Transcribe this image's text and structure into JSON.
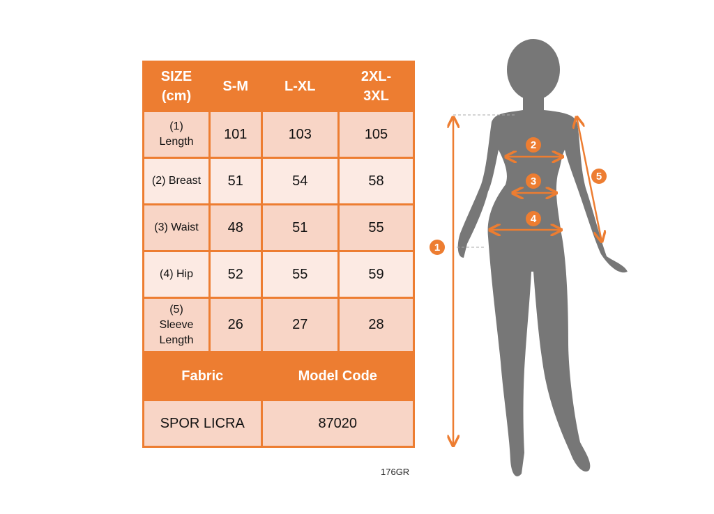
{
  "table": {
    "header": [
      "SIZE\n(cm)",
      "S-M",
      "L-XL",
      "2XL-\n3XL"
    ],
    "rows": [
      {
        "label": "(1)\nLength",
        "values": [
          "101",
          "103",
          "105"
        ]
      },
      {
        "label": "(2) Breast",
        "values": [
          "51",
          "54",
          "58"
        ]
      },
      {
        "label": "(3) Waist",
        "values": [
          "48",
          "51",
          "55"
        ]
      },
      {
        "label": "(4) Hip",
        "values": [
          "52",
          "55",
          "59"
        ]
      },
      {
        "label": "(5)\nSleeve\nLength",
        "values": [
          "26",
          "27",
          "28"
        ]
      }
    ],
    "fabric_label": "Fabric",
    "model_code_label": "Model Code",
    "fabric_value": "SPOR LICRA",
    "model_code_value": "87020"
  },
  "footnote": "176GR",
  "figure": {
    "markers": [
      "1",
      "2",
      "3",
      "4",
      "5"
    ]
  },
  "colors": {
    "accent": "#ED7D31",
    "row_dark": "#F8D5C6",
    "row_light": "#FCEAE3",
    "silhouette": "#777777"
  }
}
